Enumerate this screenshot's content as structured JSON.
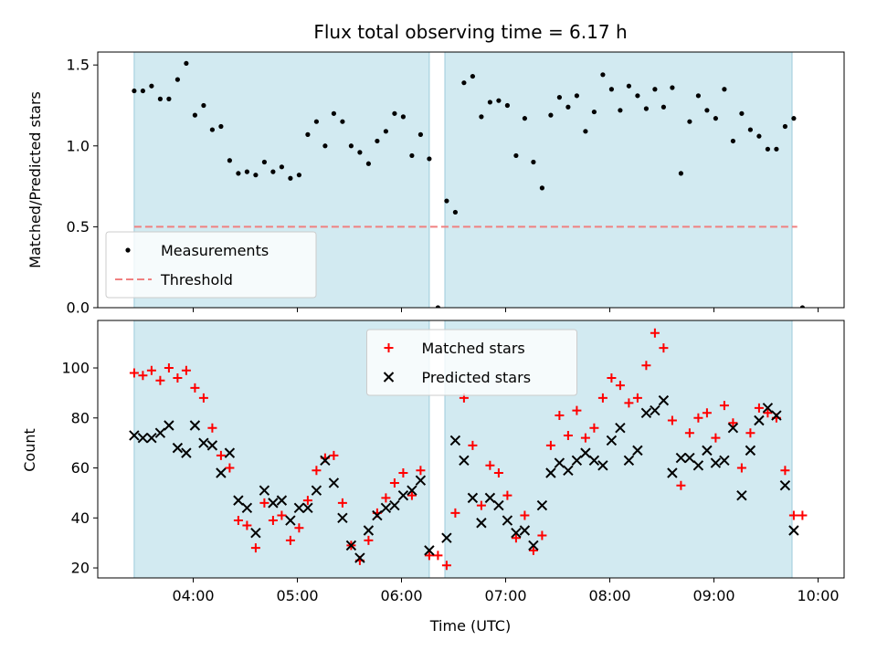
{
  "chart_data": {
    "title": "Flux total observing time = 6.17 h",
    "xlabel": "Time (UTC)",
    "x_ticks": [
      "04:00",
      "05:00",
      "06:00",
      "07:00",
      "08:00",
      "09:00",
      "10:00"
    ],
    "xlim": [
      "03:05",
      "10:15"
    ],
    "shaded_intervals": [
      [
        "03:26",
        "06:16"
      ],
      [
        "06:25",
        "09:45"
      ]
    ],
    "shade_color": "#add8e6",
    "panels": [
      {
        "type": "scatter",
        "ylabel": "Matched/Predicted stars",
        "ylim": [
          0,
          1.58
        ],
        "y_ticks": [
          "0.0",
          "0.5",
          "1.0",
          "1.5"
        ],
        "y_tick_values": [
          0,
          0.5,
          1.0,
          1.5
        ],
        "legend_position": "lower-left",
        "threshold": {
          "name": "Threshold",
          "value": 0.5,
          "x_start": "03:26",
          "x_end": "09:48",
          "color": "#f08080"
        },
        "series": [
          {
            "name": "Measurements",
            "marker": "dot",
            "color": "#000000",
            "points": [
              [
                "03:26",
                1.34
              ],
              [
                "03:31",
                1.34
              ],
              [
                "03:36",
                1.37
              ],
              [
                "03:41",
                1.29
              ],
              [
                "03:46",
                1.29
              ],
              [
                "03:51",
                1.41
              ],
              [
                "03:56",
                1.51
              ],
              [
                "04:01",
                1.19
              ],
              [
                "04:06",
                1.25
              ],
              [
                "04:11",
                1.1
              ],
              [
                "04:16",
                1.12
              ],
              [
                "04:21",
                0.91
              ],
              [
                "04:26",
                0.83
              ],
              [
                "04:31",
                0.84
              ],
              [
                "04:36",
                0.82
              ],
              [
                "04:41",
                0.9
              ],
              [
                "04:46",
                0.84
              ],
              [
                "04:51",
                0.87
              ],
              [
                "04:56",
                0.8
              ],
              [
                "05:01",
                0.82
              ],
              [
                "05:06",
                1.07
              ],
              [
                "05:11",
                1.15
              ],
              [
                "05:16",
                1.0
              ],
              [
                "05:21",
                1.2
              ],
              [
                "05:26",
                1.15
              ],
              [
                "05:31",
                1.0
              ],
              [
                "05:36",
                0.96
              ],
              [
                "05:41",
                0.89
              ],
              [
                "05:46",
                1.03
              ],
              [
                "05:51",
                1.09
              ],
              [
                "05:56",
                1.2
              ],
              [
                "06:01",
                1.18
              ],
              [
                "06:06",
                0.94
              ],
              [
                "06:11",
                1.07
              ],
              [
                "06:16",
                0.92
              ],
              [
                "06:21",
                0.0
              ],
              [
                "06:26",
                0.66
              ],
              [
                "06:31",
                0.59
              ],
              [
                "06:36",
                1.39
              ],
              [
                "06:41",
                1.43
              ],
              [
                "06:46",
                1.18
              ],
              [
                "06:51",
                1.27
              ],
              [
                "06:56",
                1.28
              ],
              [
                "07:01",
                1.25
              ],
              [
                "07:06",
                0.94
              ],
              [
                "07:11",
                1.17
              ],
              [
                "07:16",
                0.9
              ],
              [
                "07:21",
                0.74
              ],
              [
                "07:26",
                1.19
              ],
              [
                "07:31",
                1.3
              ],
              [
                "07:36",
                1.24
              ],
              [
                "07:41",
                1.31
              ],
              [
                "07:46",
                1.09
              ],
              [
                "07:51",
                1.21
              ],
              [
                "07:56",
                1.44
              ],
              [
                "08:01",
                1.35
              ],
              [
                "08:06",
                1.22
              ],
              [
                "08:11",
                1.37
              ],
              [
                "08:16",
                1.31
              ],
              [
                "08:21",
                1.23
              ],
              [
                "08:26",
                1.35
              ],
              [
                "08:31",
                1.24
              ],
              [
                "08:36",
                1.36
              ],
              [
                "08:41",
                0.83
              ],
              [
                "08:46",
                1.15
              ],
              [
                "08:51",
                1.31
              ],
              [
                "08:56",
                1.22
              ],
              [
                "09:01",
                1.17
              ],
              [
                "09:06",
                1.35
              ],
              [
                "09:11",
                1.03
              ],
              [
                "09:16",
                1.2
              ],
              [
                "09:21",
                1.1
              ],
              [
                "09:26",
                1.06
              ],
              [
                "09:31",
                0.98
              ],
              [
                "09:36",
                0.98
              ],
              [
                "09:41",
                1.12
              ],
              [
                "09:46",
                1.17
              ],
              [
                "09:51",
                0.0
              ]
            ]
          }
        ]
      },
      {
        "type": "scatter",
        "ylabel": "Count",
        "ylim": [
          16,
          119
        ],
        "y_ticks": [
          "20",
          "40",
          "60",
          "80",
          "100"
        ],
        "y_tick_values": [
          20,
          40,
          60,
          80,
          100
        ],
        "legend_position": "upper-center",
        "series": [
          {
            "name": "Matched stars",
            "marker": "plus",
            "color": "#ff0000",
            "points": [
              [
                "03:26",
                98
              ],
              [
                "03:31",
                97
              ],
              [
                "03:36",
                99
              ],
              [
                "03:41",
                95
              ],
              [
                "03:46",
                100
              ],
              [
                "03:51",
                96
              ],
              [
                "03:56",
                99
              ],
              [
                "04:01",
                92
              ],
              [
                "04:06",
                88
              ],
              [
                "04:11",
                76
              ],
              [
                "04:16",
                65
              ],
              [
                "04:21",
                60
              ],
              [
                "04:26",
                39
              ],
              [
                "04:31",
                37
              ],
              [
                "04:36",
                28
              ],
              [
                "04:41",
                46
              ],
              [
                "04:46",
                39
              ],
              [
                "04:51",
                41
              ],
              [
                "04:56",
                31
              ],
              [
                "05:01",
                36
              ],
              [
                "05:06",
                47
              ],
              [
                "05:11",
                59
              ],
              [
                "05:16",
                64
              ],
              [
                "05:21",
                65
              ],
              [
                "05:26",
                46
              ],
              [
                "05:31",
                29
              ],
              [
                "05:36",
                23
              ],
              [
                "05:41",
                31
              ],
              [
                "05:46",
                42
              ],
              [
                "05:51",
                48
              ],
              [
                "05:56",
                54
              ],
              [
                "06:01",
                58
              ],
              [
                "06:06",
                49
              ],
              [
                "06:11",
                59
              ],
              [
                "06:16",
                25
              ],
              [
                "06:21",
                25
              ],
              [
                "06:26",
                21
              ],
              [
                "06:31",
                42
              ],
              [
                "06:36",
                88
              ],
              [
                "06:41",
                69
              ],
              [
                "06:46",
                45
              ],
              [
                "06:51",
                61
              ],
              [
                "06:56",
                58
              ],
              [
                "07:01",
                49
              ],
              [
                "07:06",
                32
              ],
              [
                "07:11",
                41
              ],
              [
                "07:16",
                27
              ],
              [
                "07:21",
                33
              ],
              [
                "07:26",
                69
              ],
              [
                "07:31",
                81
              ],
              [
                "07:36",
                73
              ],
              [
                "07:41",
                83
              ],
              [
                "07:46",
                72
              ],
              [
                "07:51",
                76
              ],
              [
                "07:56",
                88
              ],
              [
                "08:01",
                96
              ],
              [
                "08:06",
                93
              ],
              [
                "08:11",
                86
              ],
              [
                "08:16",
                88
              ],
              [
                "08:21",
                101
              ],
              [
                "08:26",
                114
              ],
              [
                "08:31",
                108
              ],
              [
                "08:36",
                79
              ],
              [
                "08:41",
                53
              ],
              [
                "08:46",
                74
              ],
              [
                "08:51",
                80
              ],
              [
                "08:56",
                82
              ],
              [
                "09:01",
                72
              ],
              [
                "09:06",
                85
              ],
              [
                "09:11",
                78
              ],
              [
                "09:16",
                60
              ],
              [
                "09:21",
                74
              ],
              [
                "09:26",
                84
              ],
              [
                "09:31",
                82
              ],
              [
                "09:36",
                80
              ],
              [
                "09:41",
                59
              ],
              [
                "09:46",
                41
              ],
              [
                "09:51",
                41
              ]
            ]
          },
          {
            "name": "Predicted stars",
            "marker": "x",
            "color": "#000000",
            "points": [
              [
                "03:26",
                73
              ],
              [
                "03:31",
                72
              ],
              [
                "03:36",
                72
              ],
              [
                "03:41",
                74
              ],
              [
                "03:46",
                77
              ],
              [
                "03:51",
                68
              ],
              [
                "03:56",
                66
              ],
              [
                "04:01",
                77
              ],
              [
                "04:06",
                70
              ],
              [
                "04:11",
                69
              ],
              [
                "04:16",
                58
              ],
              [
                "04:21",
                66
              ],
              [
                "04:26",
                47
              ],
              [
                "04:31",
                44
              ],
              [
                "04:36",
                34
              ],
              [
                "04:41",
                51
              ],
              [
                "04:46",
                46
              ],
              [
                "04:51",
                47
              ],
              [
                "04:56",
                39
              ],
              [
                "05:01",
                44
              ],
              [
                "05:06",
                44
              ],
              [
                "05:11",
                51
              ],
              [
                "05:16",
                63
              ],
              [
                "05:21",
                54
              ],
              [
                "05:26",
                40
              ],
              [
                "05:31",
                29
              ],
              [
                "05:36",
                24
              ],
              [
                "05:41",
                35
              ],
              [
                "05:46",
                41
              ],
              [
                "05:51",
                44
              ],
              [
                "05:56",
                45
              ],
              [
                "06:01",
                49
              ],
              [
                "06:06",
                51
              ],
              [
                "06:11",
                55
              ],
              [
                "06:16",
                27
              ],
              [
                "06:26",
                32
              ],
              [
                "06:31",
                71
              ],
              [
                "06:36",
                63
              ],
              [
                "06:41",
                48
              ],
              [
                "06:46",
                38
              ],
              [
                "06:51",
                48
              ],
              [
                "06:56",
                45
              ],
              [
                "07:01",
                39
              ],
              [
                "07:06",
                34
              ],
              [
                "07:11",
                35
              ],
              [
                "07:16",
                29
              ],
              [
                "07:21",
                45
              ],
              [
                "07:26",
                58
              ],
              [
                "07:31",
                62
              ],
              [
                "07:36",
                59
              ],
              [
                "07:41",
                63
              ],
              [
                "07:46",
                66
              ],
              [
                "07:51",
                63
              ],
              [
                "07:56",
                61
              ],
              [
                "08:01",
                71
              ],
              [
                "08:06",
                76
              ],
              [
                "08:11",
                63
              ],
              [
                "08:16",
                67
              ],
              [
                "08:21",
                82
              ],
              [
                "08:26",
                83
              ],
              [
                "08:31",
                87
              ],
              [
                "08:36",
                58
              ],
              [
                "08:41",
                64
              ],
              [
                "08:46",
                64
              ],
              [
                "08:51",
                61
              ],
              [
                "08:56",
                67
              ],
              [
                "09:01",
                62
              ],
              [
                "09:06",
                63
              ],
              [
                "09:11",
                76
              ],
              [
                "09:16",
                49
              ],
              [
                "09:21",
                67
              ],
              [
                "09:26",
                79
              ],
              [
                "09:31",
                84
              ],
              [
                "09:36",
                81
              ],
              [
                "09:41",
                53
              ],
              [
                "09:46",
                35
              ]
            ]
          }
        ]
      }
    ]
  }
}
